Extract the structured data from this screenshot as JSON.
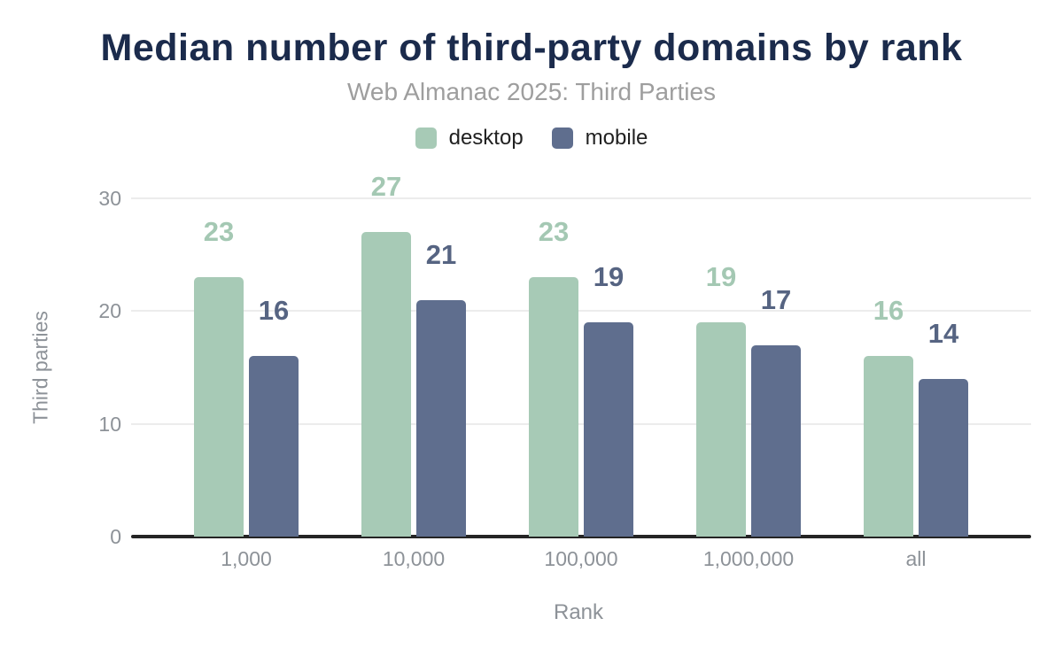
{
  "chart_data": {
    "type": "bar",
    "title": "Median number of third-party domains by rank",
    "subtitle": "Web Almanac 2025: Third Parties",
    "xlabel": "Rank",
    "ylabel": "Third parties",
    "categories": [
      "1,000",
      "10,000",
      "100,000",
      "1,000,000",
      "all"
    ],
    "series": [
      {
        "name": "desktop",
        "color": "#a7cab6",
        "label_color": "#a4c8b3",
        "values": [
          23,
          27,
          23,
          19,
          16
        ]
      },
      {
        "name": "mobile",
        "color": "#5f6e8e",
        "label_color": "#566482",
        "values": [
          16,
          21,
          19,
          17,
          14
        ]
      }
    ],
    "ylim": [
      0,
      30
    ],
    "yticks": [
      0,
      10,
      20,
      30
    ],
    "grid": true,
    "legend_position": "top",
    "colors": {
      "title": "#1b2b4c",
      "subtitle": "#9e9e9e",
      "axis_text": "#8d9298",
      "legend_text": "#212121",
      "gridline": "#ececec",
      "axis_line": "#242424",
      "background": "#ffffff"
    }
  }
}
